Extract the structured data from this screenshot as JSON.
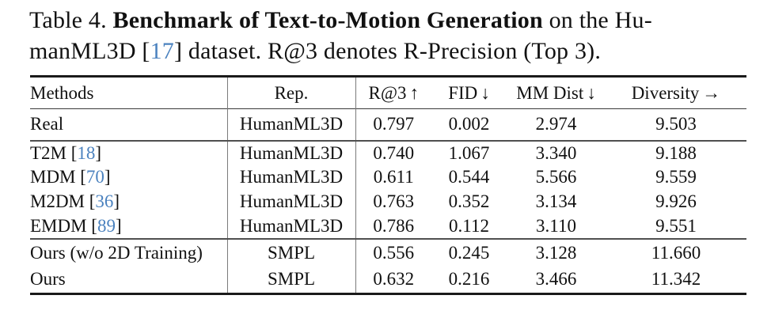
{
  "caption": {
    "line1_pre": "Table 4. ",
    "line1_bold": "Benchmark of Text-to-Motion Generation",
    "line1_post": " on the Hu-",
    "line2_pre": "manML3D [",
    "line2_cite": "17",
    "line2_post": "] dataset. R@3 denotes R-Precision (Top 3)."
  },
  "table": {
    "columns": {
      "methods": {
        "label": "Methods",
        "arrow": ""
      },
      "rep": {
        "label": "Rep.",
        "arrow": ""
      },
      "r3": {
        "label": "R@3",
        "arrow": "↑"
      },
      "fid": {
        "label": "FID",
        "arrow": "↓"
      },
      "mm": {
        "label": "MM Dist",
        "arrow": "↓"
      },
      "div": {
        "label": "Diversity",
        "arrow": "→"
      }
    },
    "rows": [
      {
        "method_pre": "Real",
        "cite": "",
        "method_post": "",
        "rep": "HumanML3D",
        "r3": "0.797",
        "fid": "0.002",
        "mm": "2.974",
        "div": "9.503"
      },
      {
        "method_pre": "T2M [",
        "cite": "18",
        "method_post": "]",
        "rep": "HumanML3D",
        "r3": "0.740",
        "fid": "1.067",
        "mm": "3.340",
        "div": "9.188"
      },
      {
        "method_pre": "MDM [",
        "cite": "70",
        "method_post": "]",
        "rep": "HumanML3D",
        "r3": "0.611",
        "fid": "0.544",
        "mm": "5.566",
        "div": "9.559"
      },
      {
        "method_pre": "M2DM [",
        "cite": "36",
        "method_post": "]",
        "rep": "HumanML3D",
        "r3": "0.763",
        "fid": "0.352",
        "mm": "3.134",
        "div": "9.926"
      },
      {
        "method_pre": "EMDM [",
        "cite": "89",
        "method_post": "]",
        "rep": "HumanML3D",
        "r3": "0.786",
        "fid": "0.112",
        "mm": "3.110",
        "div": "9.551"
      },
      {
        "method_pre": "Ours (w/o 2D Training)",
        "cite": "",
        "method_post": "",
        "rep": "SMPL",
        "r3": "0.556",
        "fid": "0.245",
        "mm": "3.128",
        "div": "11.660"
      },
      {
        "method_pre": "Ours",
        "cite": "",
        "method_post": "",
        "rep": "SMPL",
        "r3": "0.632",
        "fid": "0.216",
        "mm": "3.466",
        "div": "11.342"
      }
    ]
  },
  "colors": {
    "citation_blue": "#4b82bf",
    "text": "#111111",
    "rule_heavy": "#1a1a1a",
    "rule_mid": "#4f4f4f"
  }
}
